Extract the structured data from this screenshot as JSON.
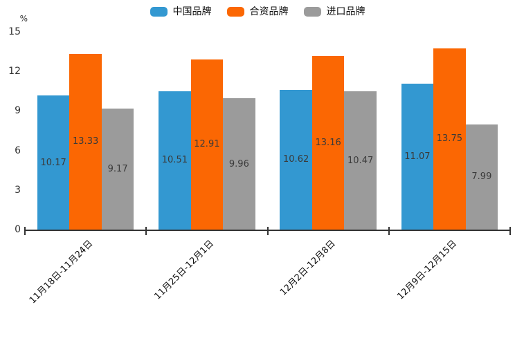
{
  "chart_data": {
    "type": "bar",
    "title": "",
    "xlabel": "",
    "ylabel": "%",
    "ylim": [
      0,
      15
    ],
    "yticks": [
      0,
      3,
      6,
      9,
      12,
      15
    ],
    "grid": false,
    "legend_position": "top",
    "value_labels": true,
    "categories": [
      "11月18日-11月24日",
      "11月25日-12月1日",
      "12月2日-12月8日",
      "12月9日-12月15日"
    ],
    "series": [
      {
        "name": "中国品牌",
        "color": "#3398d1",
        "values": [
          10.17,
          10.51,
          10.62,
          11.07
        ]
      },
      {
        "name": "合资品牌",
        "color": "#fb6703",
        "values": [
          13.33,
          12.91,
          13.16,
          13.75
        ]
      },
      {
        "name": "进口品牌",
        "color": "#9b9b9b",
        "values": [
          9.17,
          9.96,
          10.47,
          7.99
        ]
      }
    ],
    "axis_color": "#333333",
    "value_label_color": "#3a3a3a"
  }
}
